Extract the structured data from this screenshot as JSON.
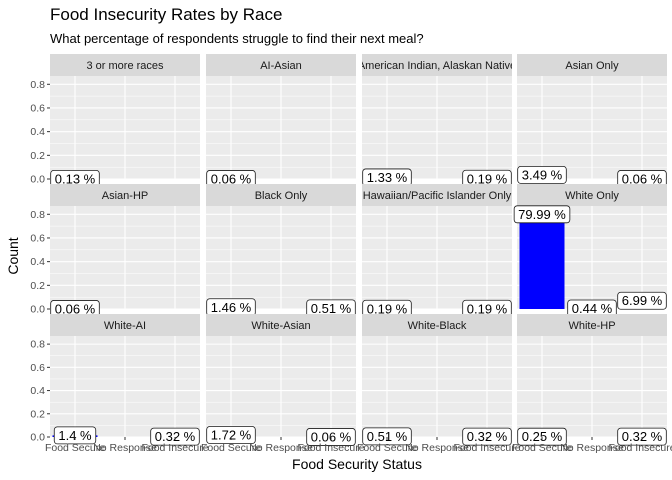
{
  "chart_data": {
    "type": "bar",
    "title": "Food Insecurity Rates by Race",
    "subtitle": "What percentage of respondents struggle to find their next meal?",
    "xlabel": "Food Security Status",
    "ylabel": "Count",
    "ylim": [
      0,
      0.87
    ],
    "yticks": [
      "0.0",
      "0.2",
      "0.4",
      "0.6",
      "0.8"
    ],
    "categories": [
      "Food Secure",
      "No Response",
      "Food Insecure"
    ],
    "bar_color": "#0000ff",
    "panel_bg": "#ebebeb",
    "strip_bg": "#d9d9d9",
    "panels": [
      {
        "name": "3 or more races",
        "values": [
          0.0013,
          null,
          null
        ],
        "labels": [
          "0.13 %",
          null,
          null
        ]
      },
      {
        "name": "AI-Asian",
        "values": [
          0.0006,
          null,
          null
        ],
        "labels": [
          "0.06 %",
          null,
          null
        ]
      },
      {
        "name": "American Indian, Alaskan Native",
        "values": [
          0.0133,
          null,
          0.0019
        ],
        "labels": [
          "1.33 %",
          null,
          "0.19 %"
        ]
      },
      {
        "name": "Asian Only",
        "values": [
          0.0349,
          null,
          0.0006
        ],
        "labels": [
          "3.49 %",
          null,
          "0.06 %"
        ]
      },
      {
        "name": "Asian-HP",
        "values": [
          0.0006,
          null,
          null
        ],
        "labels": [
          "0.06 %",
          null,
          null
        ]
      },
      {
        "name": "Black Only",
        "values": [
          0.0146,
          null,
          0.0051
        ],
        "labels": [
          "1.46 %",
          null,
          "0.51 %"
        ]
      },
      {
        "name": "Hawaiian/Pacific Islander Only",
        "values": [
          0.0019,
          null,
          0.0019
        ],
        "labels": [
          "0.19 %",
          null,
          "0.19 %"
        ]
      },
      {
        "name": "White Only",
        "values": [
          0.7999,
          0.0044,
          0.0699
        ],
        "labels": [
          "79.99 %",
          "0.44 %",
          "6.99 %"
        ]
      },
      {
        "name": "White-AI",
        "values": [
          0.014,
          null,
          0.0032
        ],
        "labels": [
          "1.4 %",
          null,
          "0.32 %"
        ]
      },
      {
        "name": "White-Asian",
        "values": [
          0.0172,
          null,
          0.0006
        ],
        "labels": [
          "1.72 %",
          null,
          "0.06 %"
        ]
      },
      {
        "name": "White-Black",
        "values": [
          0.0051,
          null,
          0.0032
        ],
        "labels": [
          "0.51 %",
          null,
          "0.32 %"
        ]
      },
      {
        "name": "White-HP",
        "values": [
          0.0025,
          null,
          0.0032
        ],
        "labels": [
          "0.25 %",
          null,
          "0.32 %"
        ]
      }
    ]
  }
}
